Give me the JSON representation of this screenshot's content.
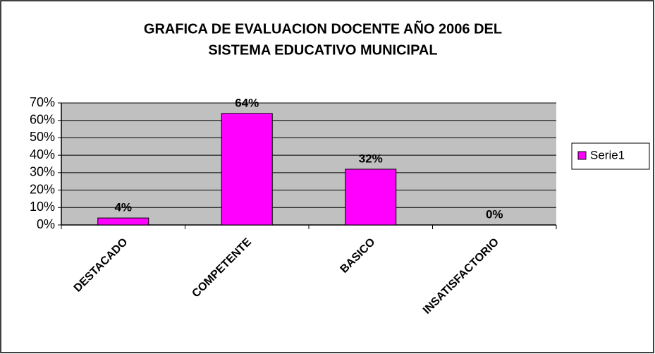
{
  "chart_data": {
    "type": "bar",
    "title": [
      "GRAFICA DE EVALUACION DOCENTE AÑO 2006 DEL",
      "SISTEMA EDUCATIVO MUNICIPAL"
    ],
    "categories": [
      "DESTACADO",
      "COMPETENTE",
      "BASICO",
      "INSATISFACTORIO"
    ],
    "series": [
      {
        "name": "Serie1",
        "color": "#ff00ff",
        "values": [
          4,
          64,
          32,
          0
        ],
        "value_labels": [
          "4%",
          "64%",
          "32%",
          "0%"
        ]
      }
    ],
    "ylim": [
      0,
      70
    ],
    "yticks": [
      {
        "value": 0,
        "label": "0%"
      },
      {
        "value": 10,
        "label": "10%"
      },
      {
        "value": 20,
        "label": "20%"
      },
      {
        "value": 30,
        "label": "30%"
      },
      {
        "value": 40,
        "label": "40%"
      },
      {
        "value": 50,
        "label": "50%"
      },
      {
        "value": 60,
        "label": "60%"
      },
      {
        "value": 70,
        "label": "70%"
      }
    ],
    "grid": true,
    "legend": "right"
  }
}
